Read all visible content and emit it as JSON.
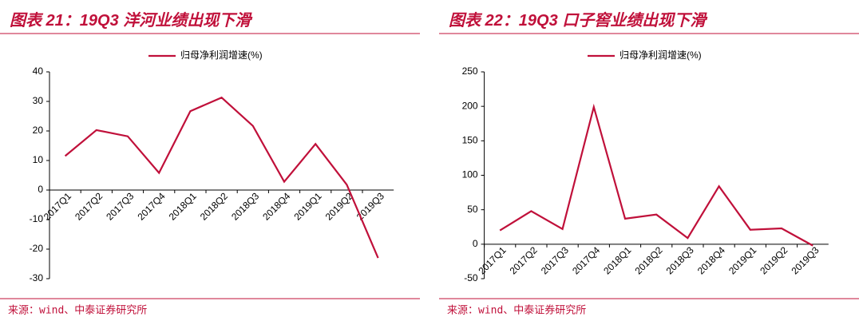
{
  "chart_data": [
    {
      "type": "line",
      "title": "图表 21：19Q3 洋河业绩出现下滑",
      "source": "来源：wind、中泰证券研究所",
      "categories": [
        "2017Q1",
        "2017Q2",
        "2017Q3",
        "2017Q4",
        "2018Q1",
        "2018Q2",
        "2018Q3",
        "2018Q4",
        "2019Q1",
        "2019Q2",
        "2019Q3"
      ],
      "series": [
        {
          "name": "归母净利润增速(%)",
          "color": "#c0103a",
          "values": [
            11.5,
            20.3,
            18.2,
            5.8,
            26.7,
            31.3,
            21.7,
            2.8,
            15.6,
            1.8,
            -23
          ]
        }
      ],
      "ylim": [
        -30,
        40
      ],
      "yticks": [
        -30,
        -20,
        -10,
        0,
        10,
        20,
        30,
        40
      ],
      "legend": "top"
    },
    {
      "type": "line",
      "title": "图表 22：19Q3 口子窖业绩出现下滑",
      "source": "来源：wind、中泰证券研究所",
      "categories": [
        "2017Q1",
        "2017Q2",
        "2017Q3",
        "2017Q4",
        "2018Q1",
        "2018Q2",
        "2018Q3",
        "2018Q4",
        "2019Q1",
        "2019Q2",
        "2019Q3"
      ],
      "series": [
        {
          "name": "归母净利润增速(%)",
          "color": "#c0103a",
          "values": [
            20,
            48,
            22,
            199,
            37,
            43,
            9,
            84,
            21,
            23,
            -2
          ]
        }
      ],
      "ylim": [
        -50,
        250
      ],
      "yticks": [
        -50,
        0,
        50,
        100,
        150,
        200,
        250
      ],
      "legend": "top"
    }
  ]
}
